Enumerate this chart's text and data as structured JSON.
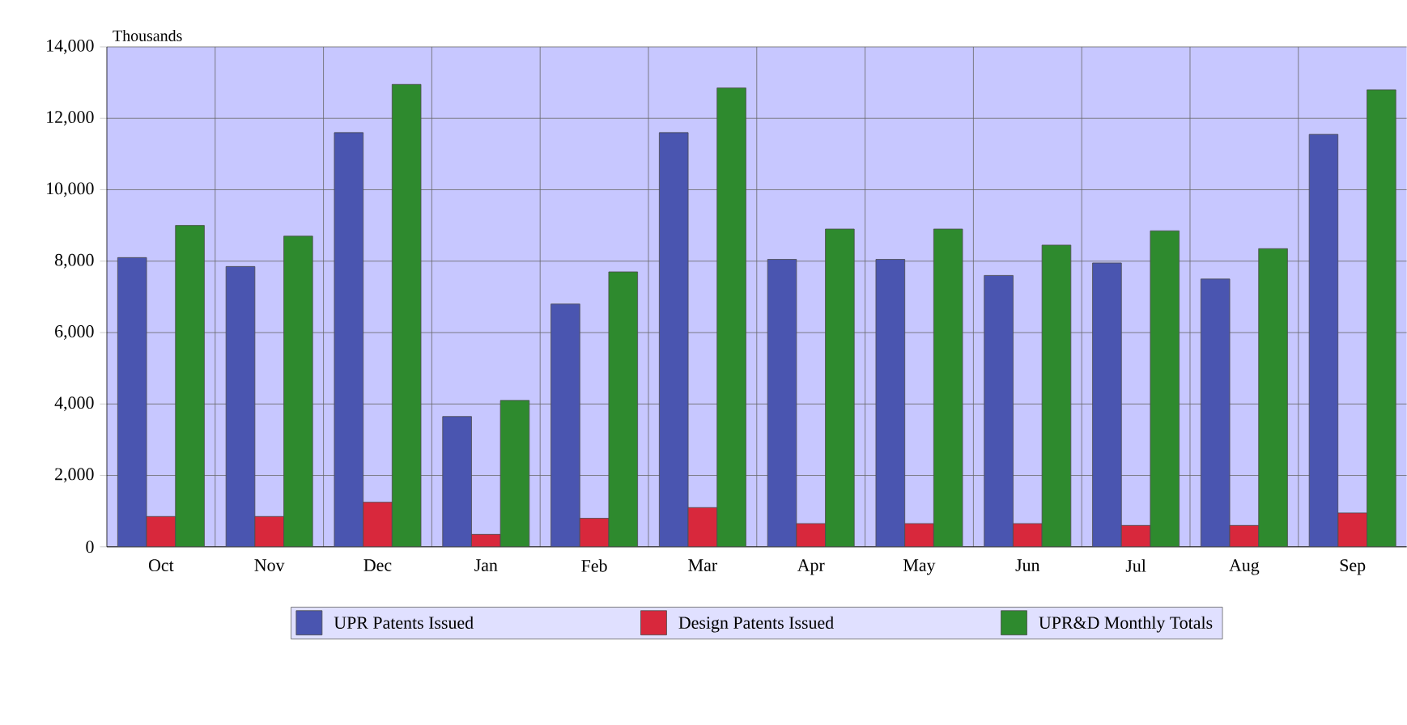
{
  "chart_data": {
    "type": "bar",
    "ylabel": "Thousands",
    "categories": [
      "Oct",
      "Nov",
      "Dec",
      "Jan",
      "Feb",
      "Mar",
      "Apr",
      "May",
      "Jun",
      "Jul",
      "Aug",
      "Sep"
    ],
    "series": [
      {
        "name": "UPR Patents Issued",
        "color": "#4a55b0",
        "values": [
          8100,
          7850,
          11600,
          3650,
          6800,
          11600,
          8050,
          8050,
          7600,
          7950,
          7500,
          11550
        ]
      },
      {
        "name": "Design Patents Issued",
        "color": "#d8283c",
        "values": [
          850,
          850,
          1250,
          350,
          800,
          1100,
          650,
          650,
          650,
          600,
          600,
          950
        ]
      },
      {
        "name": "UPR&D Monthly Totals",
        "color": "#2e8a2e",
        "values": [
          9000,
          8700,
          12950,
          4100,
          7700,
          12850,
          8900,
          8900,
          8450,
          8850,
          8350,
          12800
        ]
      }
    ],
    "ylim": [
      0,
      14000
    ],
    "yticks": [
      0,
      {
        "value": 2000,
        "label": "2,000"
      },
      {
        "value": 4000,
        "label": "4,000"
      },
      {
        "value": 6000,
        "label": "6,000"
      },
      {
        "value": 8000,
        "label": "8,000"
      },
      {
        "value": 10000,
        "label": "10,000"
      },
      {
        "value": 12000,
        "label": "12,000"
      },
      {
        "value": 14000,
        "label": "14,000"
      }
    ],
    "grid": true,
    "legend": "bottom"
  }
}
